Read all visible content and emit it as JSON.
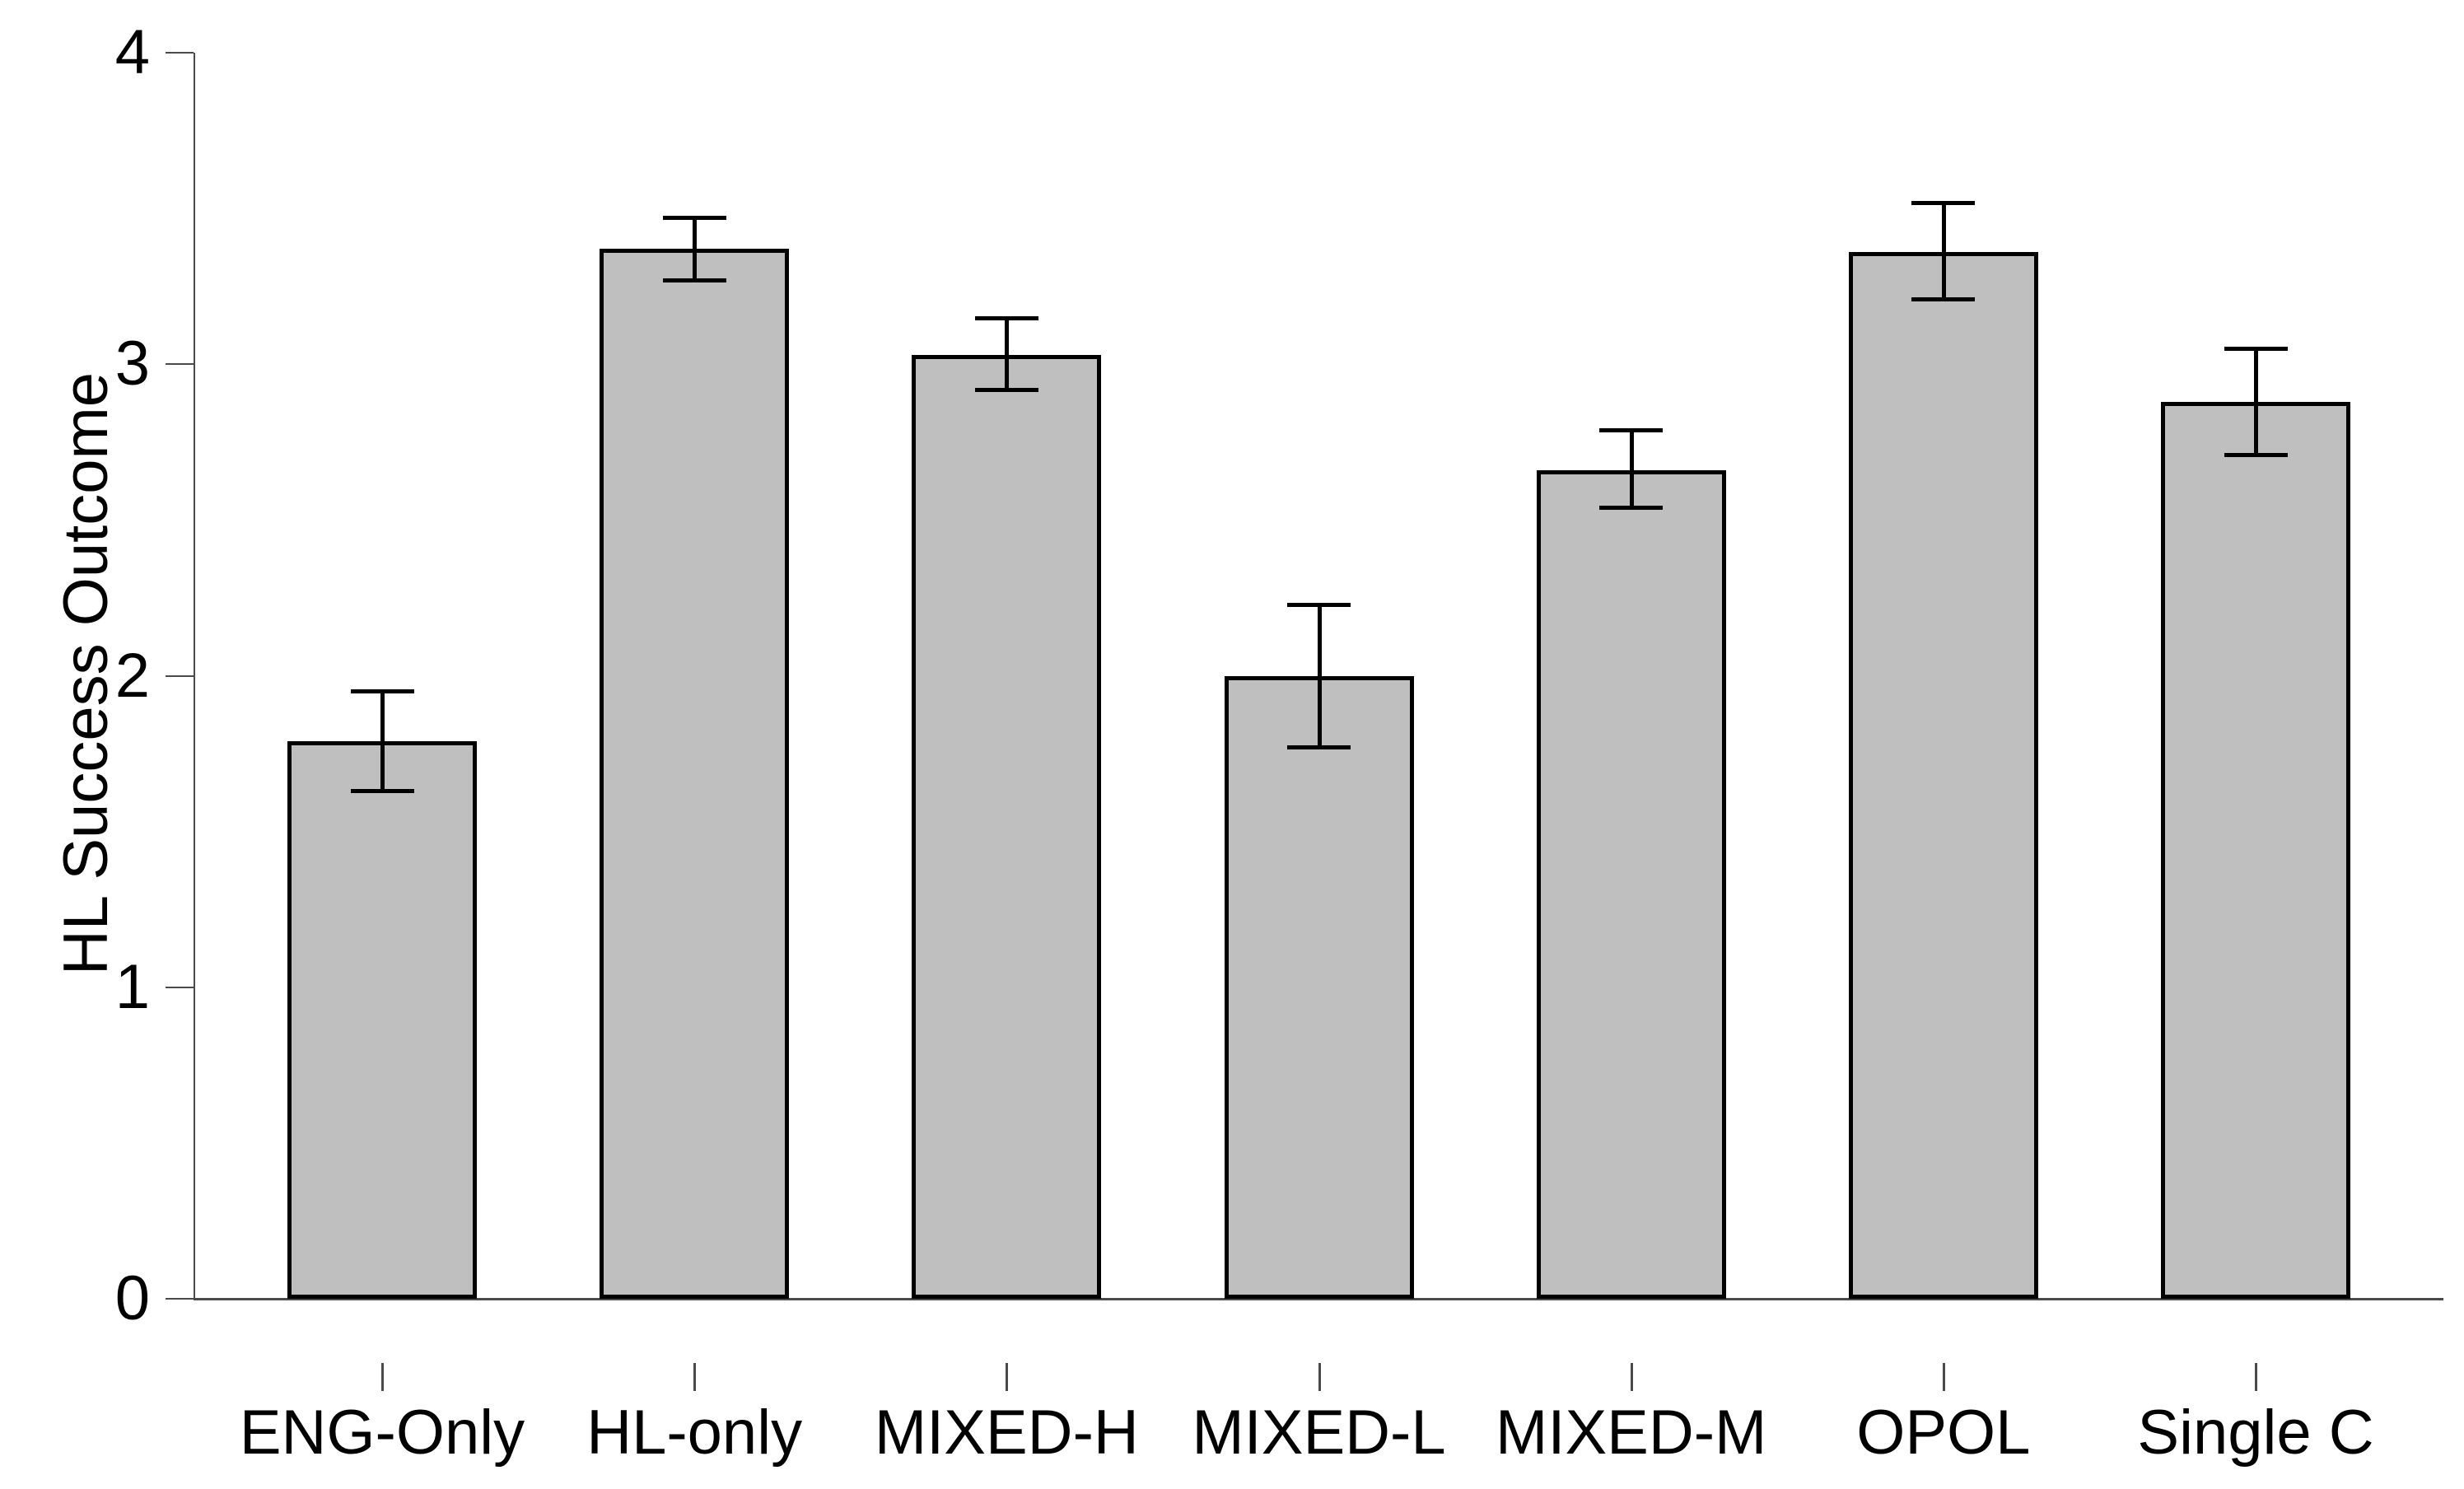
{
  "figure": {
    "background": "#ffffff"
  },
  "colors": {
    "bar_fill": "#bfbfbf",
    "bar_border": "#000000",
    "axis_line": "#4a4a4a",
    "error_bar": "#000000",
    "text": "#000000"
  },
  "chart_data": {
    "type": "bar",
    "title": "",
    "xlabel": "",
    "ylabel": "HL Success Outcome",
    "ylim": [
      0,
      4
    ],
    "yticks": [
      0,
      1,
      2,
      3,
      4
    ],
    "grid": false,
    "legend_position": "none",
    "categories": [
      "ENG-Only",
      "HL-only",
      "MIXED-H",
      "MIXED-L",
      "MIXED-M",
      "OPOL",
      "Single C"
    ],
    "values": [
      1.79,
      3.37,
      3.03,
      2.0,
      2.66,
      3.36,
      2.88
    ],
    "error_upper": [
      1.95,
      3.47,
      3.15,
      2.23,
      2.79,
      3.52,
      3.05
    ],
    "error_lower": [
      1.63,
      3.27,
      2.92,
      1.77,
      2.54,
      3.21,
      2.71
    ]
  }
}
